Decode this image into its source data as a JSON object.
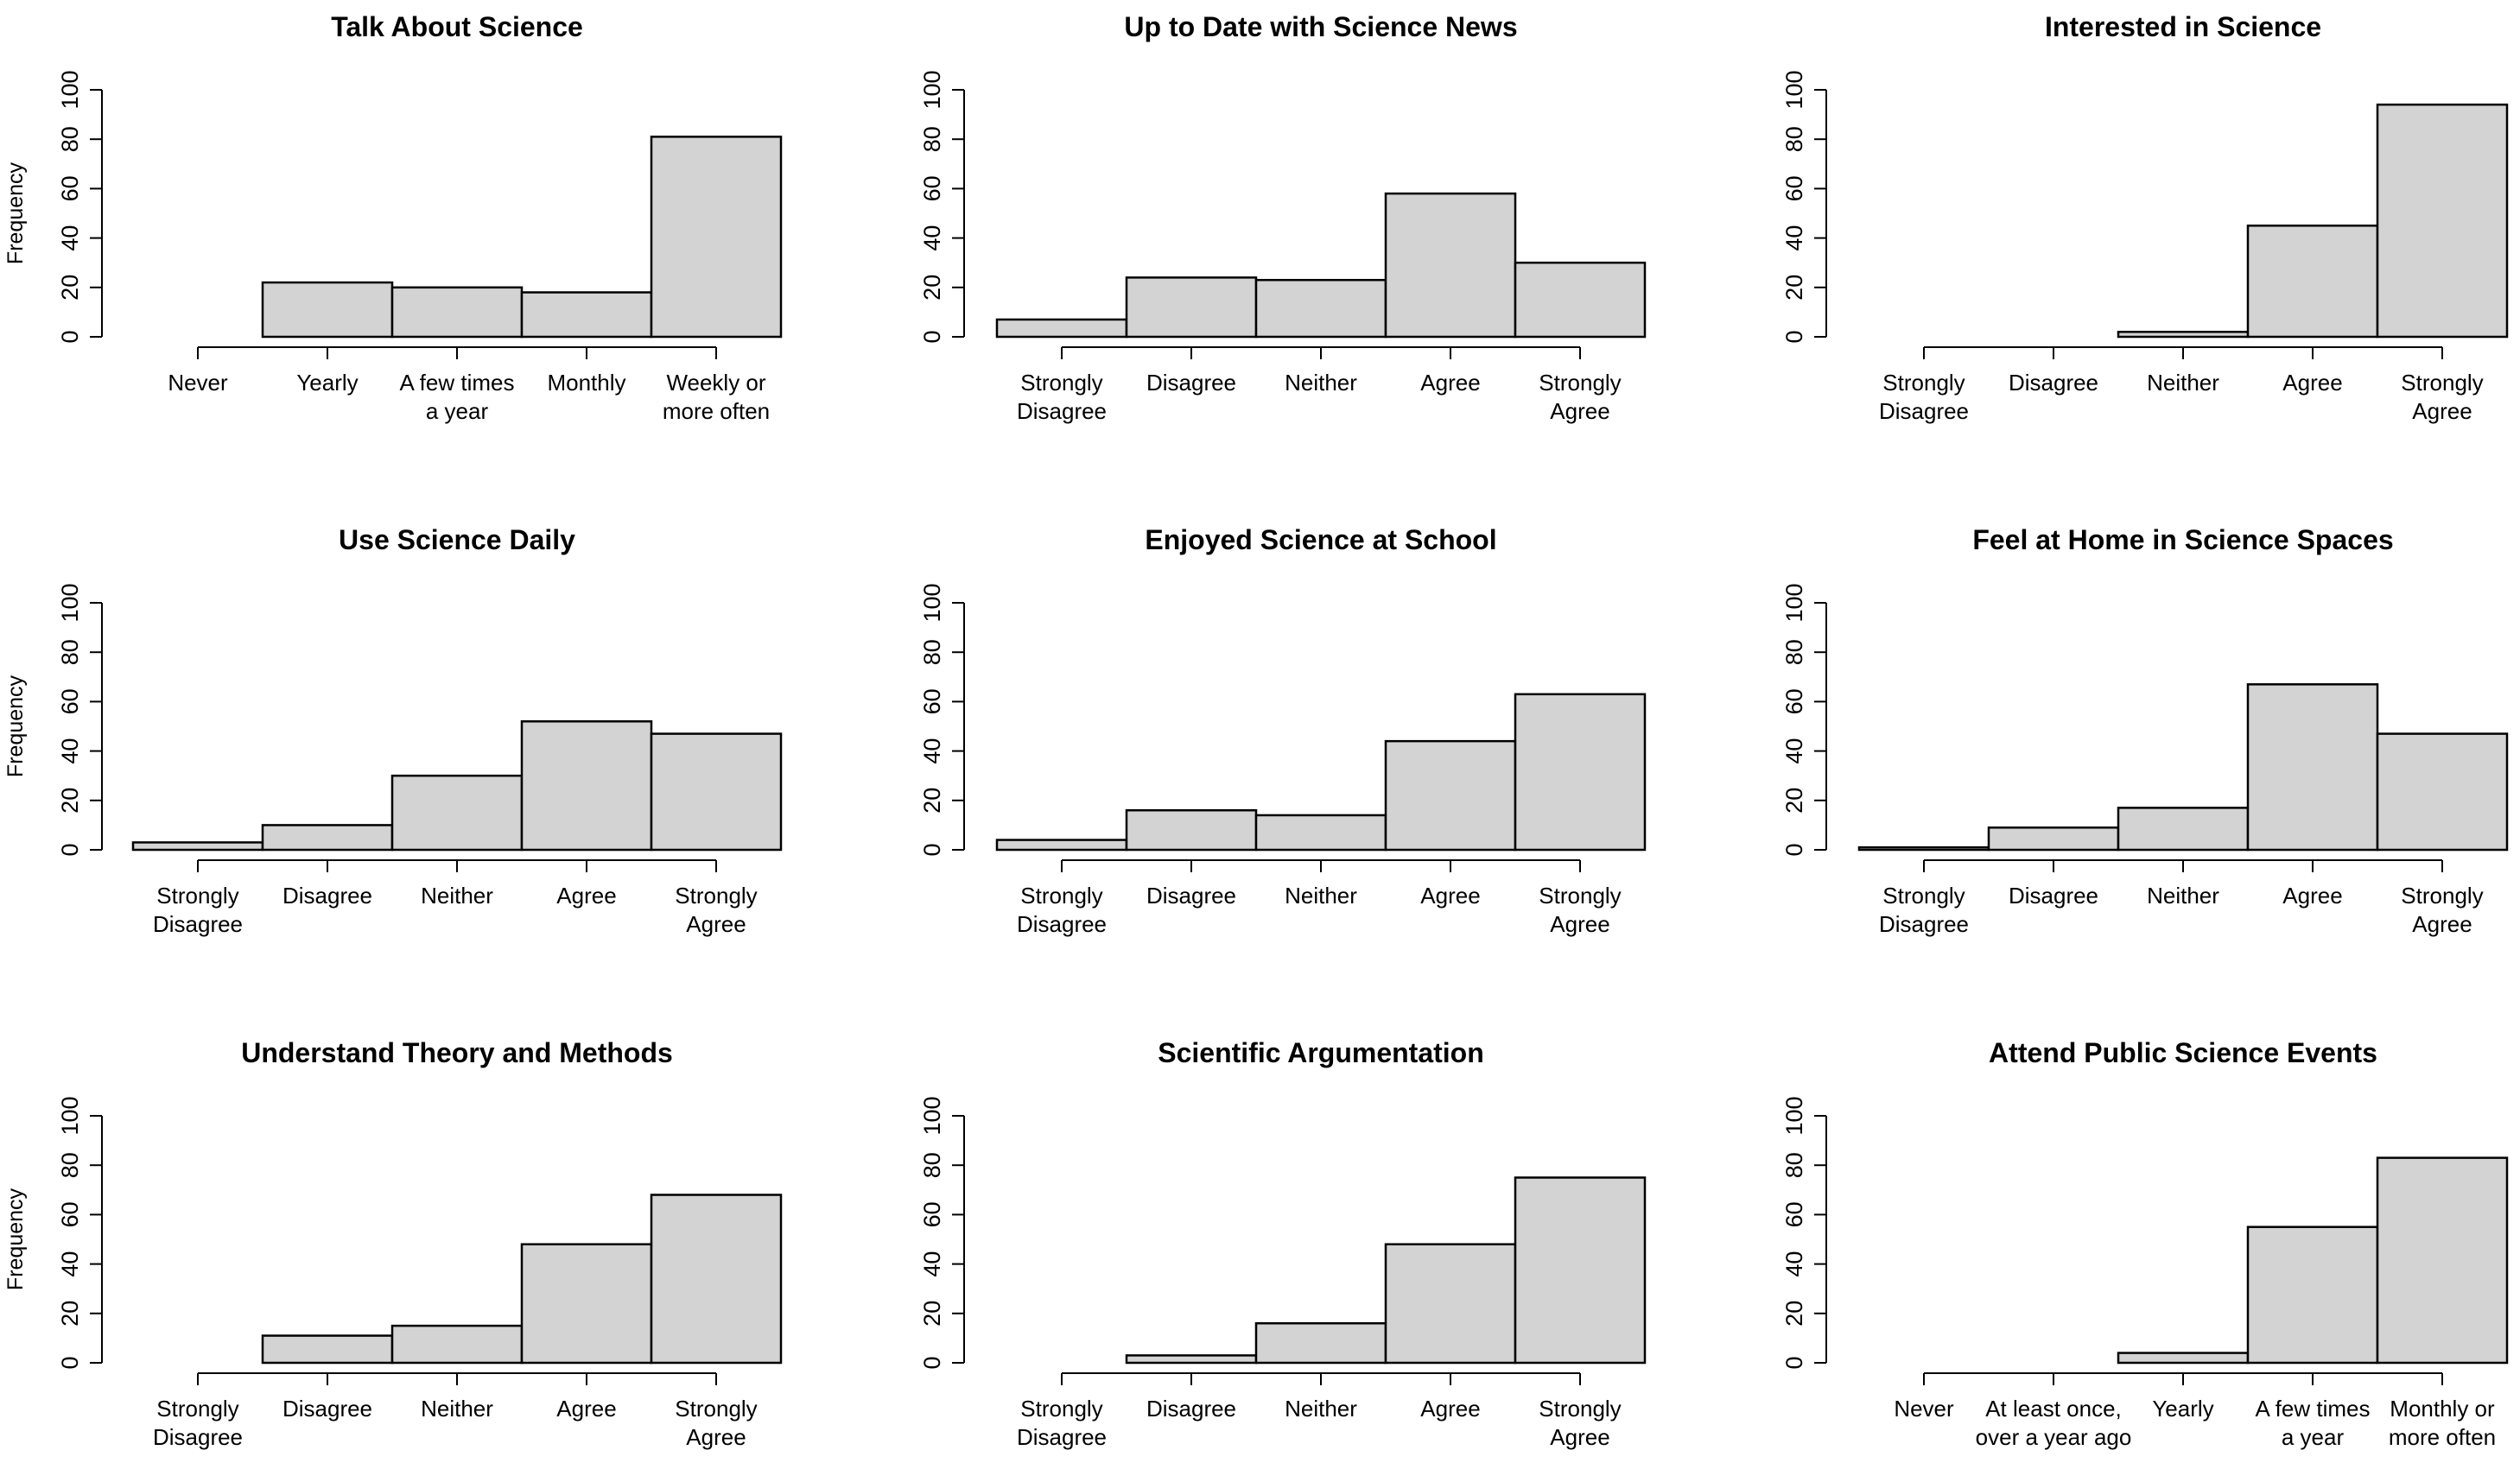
{
  "figure": {
    "bar_fill": "#d3d3d3",
    "bar_stroke": "#000000",
    "background": "#ffffff"
  },
  "chart_data": [
    {
      "type": "bar",
      "title": "Talk About Science",
      "ylabel": "Frequency",
      "ylim": [
        0,
        100
      ],
      "yticks": [
        "0",
        "20",
        "40",
        "60",
        "80",
        "100"
      ],
      "grid": false,
      "categories": [
        [
          "Never"
        ],
        [
          "Yearly"
        ],
        [
          "A few times",
          "a year"
        ],
        [
          "Monthly"
        ],
        [
          "Weekly or",
          "more often"
        ]
      ],
      "values": [
        0,
        22,
        20,
        18,
        81
      ]
    },
    {
      "type": "bar",
      "title": "Up to Date with Science News",
      "ylabel": "",
      "ylim": [
        0,
        100
      ],
      "yticks": [
        "0",
        "20",
        "40",
        "60",
        "80",
        "100"
      ],
      "grid": false,
      "categories": [
        [
          "Strongly",
          "Disagree"
        ],
        [
          "Disagree"
        ],
        [
          "Neither"
        ],
        [
          "Agree"
        ],
        [
          "Strongly",
          "Agree"
        ]
      ],
      "values": [
        7,
        24,
        23,
        58,
        30
      ]
    },
    {
      "type": "bar",
      "title": "Interested in Science",
      "ylabel": "",
      "ylim": [
        0,
        100
      ],
      "yticks": [
        "0",
        "20",
        "40",
        "60",
        "80",
        "100"
      ],
      "grid": false,
      "categories": [
        [
          "Strongly",
          "Disagree"
        ],
        [
          "Disagree"
        ],
        [
          "Neither"
        ],
        [
          "Agree"
        ],
        [
          "Strongly",
          "Agree"
        ]
      ],
      "values": [
        0,
        0,
        2,
        45,
        94
      ]
    },
    {
      "type": "bar",
      "title": "Use Science Daily",
      "ylabel": "Frequency",
      "ylim": [
        0,
        100
      ],
      "yticks": [
        "0",
        "20",
        "40",
        "60",
        "80",
        "100"
      ],
      "grid": false,
      "categories": [
        [
          "Strongly",
          "Disagree"
        ],
        [
          "Disagree"
        ],
        [
          "Neither"
        ],
        [
          "Agree"
        ],
        [
          "Strongly",
          "Agree"
        ]
      ],
      "values": [
        3,
        10,
        30,
        52,
        47
      ]
    },
    {
      "type": "bar",
      "title": "Enjoyed Science at School",
      "ylabel": "",
      "ylim": [
        0,
        100
      ],
      "yticks": [
        "0",
        "20",
        "40",
        "60",
        "80",
        "100"
      ],
      "grid": false,
      "categories": [
        [
          "Strongly",
          "Disagree"
        ],
        [
          "Disagree"
        ],
        [
          "Neither"
        ],
        [
          "Agree"
        ],
        [
          "Strongly",
          "Agree"
        ]
      ],
      "values": [
        4,
        16,
        14,
        44,
        63
      ]
    },
    {
      "type": "bar",
      "title": "Feel at Home in Science Spaces",
      "ylabel": "",
      "ylim": [
        0,
        100
      ],
      "yticks": [
        "0",
        "20",
        "40",
        "60",
        "80",
        "100"
      ],
      "grid": false,
      "categories": [
        [
          "Strongly",
          "Disagree"
        ],
        [
          "Disagree"
        ],
        [
          "Neither"
        ],
        [
          "Agree"
        ],
        [
          "Strongly",
          "Agree"
        ]
      ],
      "values": [
        1,
        9,
        17,
        67,
        47
      ]
    },
    {
      "type": "bar",
      "title": "Understand Theory and Methods",
      "ylabel": "Frequency",
      "ylim": [
        0,
        100
      ],
      "yticks": [
        "0",
        "20",
        "40",
        "60",
        "80",
        "100"
      ],
      "grid": false,
      "categories": [
        [
          "Strongly",
          "Disagree"
        ],
        [
          "Disagree"
        ],
        [
          "Neither"
        ],
        [
          "Agree"
        ],
        [
          "Strongly",
          "Agree"
        ]
      ],
      "values": [
        0,
        11,
        15,
        48,
        68
      ]
    },
    {
      "type": "bar",
      "title": "Scientific Argumentation",
      "ylabel": "",
      "ylim": [
        0,
        100
      ],
      "yticks": [
        "0",
        "20",
        "40",
        "60",
        "80",
        "100"
      ],
      "grid": false,
      "categories": [
        [
          "Strongly",
          "Disagree"
        ],
        [
          "Disagree"
        ],
        [
          "Neither"
        ],
        [
          "Agree"
        ],
        [
          "Strongly",
          "Agree"
        ]
      ],
      "values": [
        0,
        3,
        16,
        48,
        75
      ]
    },
    {
      "type": "bar",
      "title": "Attend Public Science Events",
      "ylabel": "",
      "ylim": [
        0,
        100
      ],
      "yticks": [
        "0",
        "20",
        "40",
        "60",
        "80",
        "100"
      ],
      "grid": false,
      "categories": [
        [
          "Never"
        ],
        [
          "At least once,",
          "over a year ago"
        ],
        [
          "Yearly"
        ],
        [
          "A few times",
          "a year"
        ],
        [
          "Monthly or",
          "more often"
        ]
      ],
      "values": [
        0,
        0,
        4,
        55,
        83
      ]
    }
  ]
}
